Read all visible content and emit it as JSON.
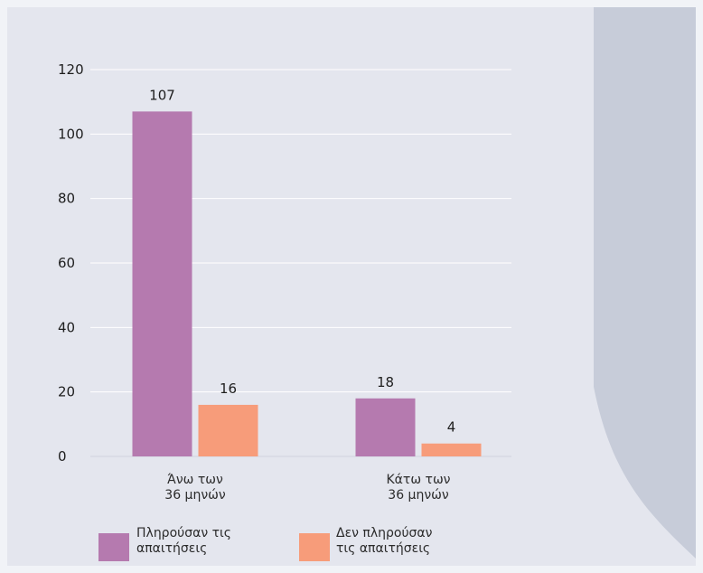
{
  "chart_data": {
    "type": "bar",
    "categories": [
      [
        "Άνω των",
        "36 μηνών"
      ],
      [
        "Κάτω των",
        "36 μηνών"
      ]
    ],
    "series": [
      {
        "name": [
          "Πληρούσαν τις",
          "απαιτήσεις"
        ],
        "color": "#b57aaf",
        "values": [
          107,
          18
        ]
      },
      {
        "name": [
          "Δεν πληρούσαν",
          "τις απαιτήσεις"
        ],
        "color": "#f79c7a",
        "values": [
          16,
          4
        ]
      }
    ],
    "y_ticks": [
      0,
      20,
      40,
      60,
      80,
      100,
      120
    ],
    "ylim": [
      0,
      120
    ],
    "grid": true,
    "legend": "bottom-left"
  },
  "colors": {
    "panel_background": "#e4e6ee",
    "side_panel": "#c7ccd9",
    "gridline": "#ffffff"
  }
}
